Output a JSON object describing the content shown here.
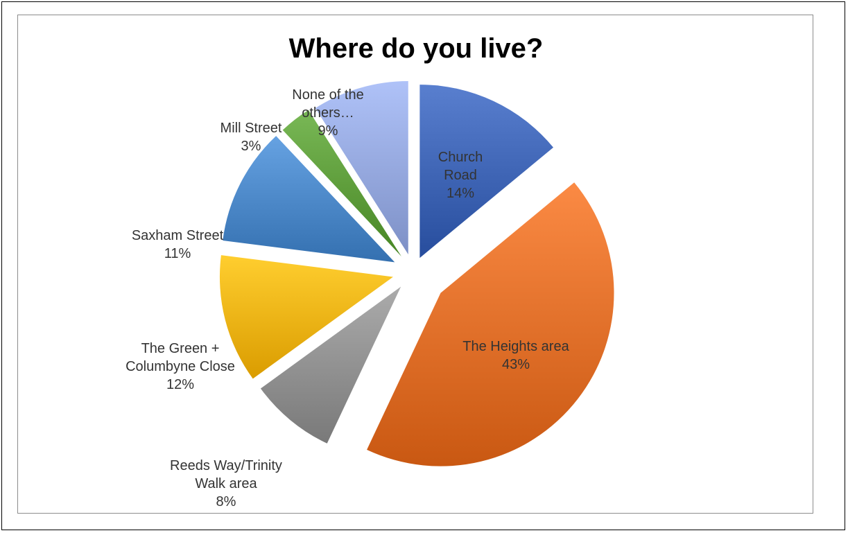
{
  "chart_data": {
    "type": "pie",
    "title": "Where do you live?",
    "slices": [
      {
        "label": [
          "Church",
          "Road"
        ],
        "percent_label": "14%",
        "value": 14,
        "color": "#3d63b3"
      },
      {
        "label": [
          "The Heights area"
        ],
        "percent_label": "43%",
        "value": 43,
        "color": "#df6e28"
      },
      {
        "label": [
          "Reeds Way/Trinity",
          "Walk area"
        ],
        "percent_label": "8%",
        "value": 8,
        "color": "#8f8f8f"
      },
      {
        "label": [
          "The Green +",
          "Columbyne Close"
        ],
        "percent_label": "12%",
        "value": 12,
        "color": "#f0b213"
      },
      {
        "label": [
          "Saxham Street"
        ],
        "percent_label": "11%",
        "value": 11,
        "color": "#4a86c6"
      },
      {
        "label": [
          "Mill Street"
        ],
        "percent_label": "3%",
        "value": 3,
        "color": "#5d9c3a"
      },
      {
        "label": [
          "None of the",
          "others…"
        ],
        "percent_label": "9%",
        "value": 9,
        "color": "#93a6dc"
      }
    ],
    "legend": "none",
    "label_text_color": "#333333"
  }
}
